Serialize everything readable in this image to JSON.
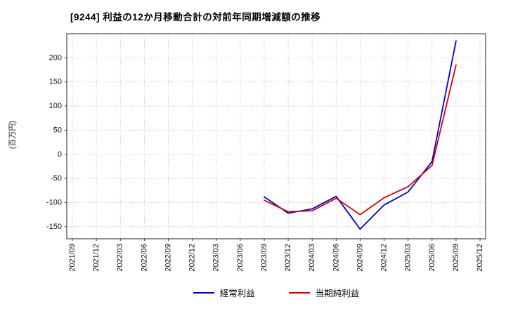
{
  "header": {
    "title": "[9244]  利益の12か月移動合計の対前年同期増減額の推移"
  },
  "chart_data": {
    "type": "line",
    "title": "[9244]  利益の12か月移動合計の対前年同期増減額の推移",
    "ylabel": "(百万円)",
    "xlabel": "",
    "categories": [
      "2021/09",
      "2021/12",
      "2022/03",
      "2022/06",
      "2022/09",
      "2022/12",
      "2023/03",
      "2023/06",
      "2023/09",
      "2023/12",
      "2024/03",
      "2024/06",
      "2024/09",
      "2024/12",
      "2025/03",
      "2025/06",
      "2025/09",
      "2025/12"
    ],
    "series": [
      {
        "name": "経常利益",
        "color": "#0000dd",
        "values": [
          null,
          null,
          null,
          null,
          null,
          null,
          null,
          null,
          -88,
          -122,
          -113,
          -87,
          -155,
          -105,
          -78,
          -15,
          235,
          null
        ]
      },
      {
        "name": "当期純利益",
        "color": "#dd0000",
        "values": [
          null,
          null,
          null,
          null,
          null,
          null,
          null,
          null,
          -95,
          -119,
          -117,
          -91,
          -125,
          -90,
          -67,
          -23,
          185,
          null
        ]
      }
    ],
    "ylim": [
      -175,
      250
    ],
    "yticks": [
      200,
      150,
      100,
      50,
      0,
      -50,
      -100,
      -150
    ],
    "grid": true,
    "grid_style": "dotted",
    "legend_position": "bottom"
  }
}
